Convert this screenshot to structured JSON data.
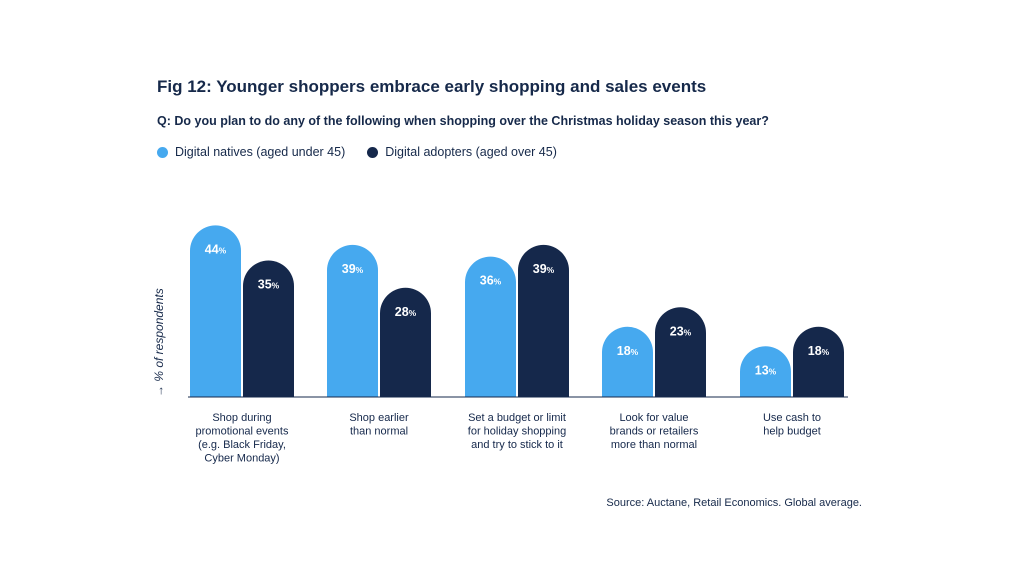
{
  "chart_data": {
    "type": "bar",
    "title": "Fig 12: Younger shoppers embrace early shopping and sales events",
    "subtitle": "Q: Do you plan to do any of the following when shopping over the Christmas holiday season this year?",
    "ylabel": "→ % of respondents",
    "value_suffix": "%",
    "ylim": [
      0,
      50
    ],
    "grid": false,
    "legend_position": "top-left",
    "categories": [
      [
        "Shop during",
        "promotional events",
        "(e.g. Black Friday,",
        "Cyber Monday)"
      ],
      [
        "Shop earlier",
        "than normal"
      ],
      [
        "Set a budget or limit",
        "for holiday shopping",
        "and try to stick to it"
      ],
      [
        "Look for value",
        "brands or retailers",
        "more than normal"
      ],
      [
        "Use cash to",
        "help budget"
      ]
    ],
    "series": [
      {
        "name": "Digital natives (aged under 45)",
        "color": "#46a9ef",
        "values": [
          44,
          39,
          36,
          18,
          13
        ]
      },
      {
        "name": "Digital adopters (aged over 45)",
        "color": "#15284b",
        "values": [
          35,
          28,
          39,
          23,
          18
        ]
      }
    ],
    "source": "Source: Auctane, Retail Economics. Global average."
  }
}
